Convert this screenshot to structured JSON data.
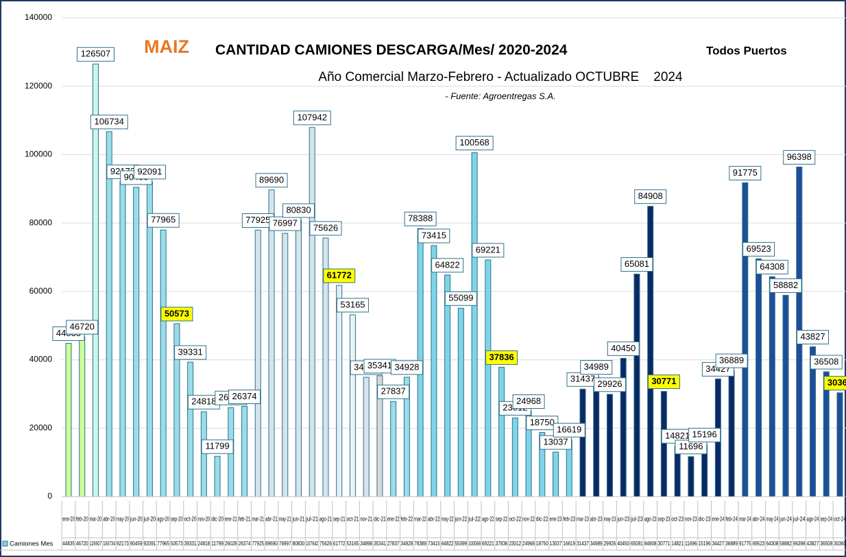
{
  "chart_data": {
    "type": "bar",
    "title_highlight": "MAIZ",
    "title": "CANTIDAD CAMIONES DESCARGA/Mes/ 2020-2024",
    "title_suffix": "Todos Puertos",
    "subtitle": "Año Comercial Marzo-Febrero - Actualizado OCTUBRE    2024",
    "source": "- Fuente: Agroentregas S.A.",
    "categories": [
      "ene-20",
      "feb-20",
      "mar-20",
      "abr-20",
      "may-20",
      "jun-20",
      "jul-20",
      "ago-20",
      "sep-20",
      "oct-20",
      "nov-20",
      "dic-20",
      "ene-21",
      "feb-21",
      "mar-21",
      "abr-21",
      "may-21",
      "jun-21",
      "jul-21",
      "ago-21",
      "sep-21",
      "oct-21",
      "nov-21",
      "dic-21",
      "ene-22",
      "feb-22",
      "mar-22",
      "abr-22",
      "may-22",
      "jun-22",
      "jul-22",
      "ago-22",
      "sep-22",
      "oct-22",
      "nov-22",
      "dic-22",
      "ene-23",
      "feb-23",
      "mar-23",
      "abr-23",
      "may-23",
      "jun-23",
      "jul-23",
      "ago-23",
      "sep-23",
      "oct-23",
      "nov-23",
      "dic-23",
      "ene-24",
      "feb-24",
      "mar-24",
      "abr-24",
      "may-24",
      "jun-24",
      "jul-24",
      "ago-24",
      "sep-24",
      "oct-24"
    ],
    "series": [
      {
        "name": "Camiones Mes",
        "color": "#7fd4e8",
        "values": [
          44835,
          46720,
          126507,
          106734,
          92173,
          90459,
          92091,
          77965,
          50573,
          39331,
          24818,
          11799,
          26028,
          26374,
          77925,
          89690,
          76997,
          80830,
          107942,
          75626,
          61772,
          53165,
          34898,
          35341,
          27837,
          34928,
          78388,
          73415,
          64822,
          55099,
          100568,
          69221,
          37836,
          23012,
          24968,
          18750,
          13037,
          16619,
          31437,
          34989,
          29926,
          40450,
          65081,
          84908,
          30771,
          14821,
          11696,
          15196,
          34427,
          36889,
          91775,
          69523,
          64308,
          58882,
          96398,
          43827,
          36508,
          30360
        ],
        "colors": [
          "#ccff99",
          "#ccff99",
          "#ccf5ee",
          "#99dde8",
          "#99dde8",
          "#99dde8",
          "#99dde8",
          "#99dde8",
          "#99dde8",
          "#99dde8",
          "#99dde8",
          "#99dde8",
          "#99dde8",
          "#99dde8",
          "#d4e4ee",
          "#d4e4ee",
          "#d4e4ee",
          "#d4e4ee",
          "#d4e4ee",
          "#d4e4ee",
          "#e4eef4",
          "#e8f4f4",
          "#d4e4ee",
          "#d9d9d9",
          "#99dde8",
          "#99dde8",
          "#7fd4e8",
          "#7fd4e8",
          "#7fd4e8",
          "#7fd4e8",
          "#7fd4e8",
          "#7fd4e8",
          "#7fd4e8",
          "#7fd4e8",
          "#7fd4e8",
          "#7fd4e8",
          "#7fd4e8",
          "#7fd4e8",
          "#0a2a66",
          "#0a2a66",
          "#0a2a66",
          "#0a2a66",
          "#0a2a66",
          "#0a2a66",
          "#0a2a66",
          "#0a2a66",
          "#0a2a66",
          "#0a2a66",
          "#0a2a66",
          "#0a2a66",
          "#1f4e99",
          "#1f4e99",
          "#1f4e99",
          "#1f4e99",
          "#1f4e99",
          "#1f4e99",
          "#1f4e99",
          "#1f4e99"
        ],
        "label_colors": [
          "#fff",
          "#fff",
          "#fff",
          "#fff",
          "#fff",
          "#fff",
          "#fff",
          "#fff",
          "#ffff00",
          "#fff",
          "#fff",
          "#fff",
          "#fff",
          "#fff",
          "#fff",
          "#fff",
          "#fff",
          "#fff",
          "#fff",
          "#fff",
          "#ffff00",
          "#fff",
          "#fff",
          "#fff",
          "#fff",
          "#fff",
          "#fff",
          "#fff",
          "#fff",
          "#fff",
          "#fff",
          "#fff",
          "#ffff00",
          "#fff",
          "#fff",
          "#fff",
          "#fff",
          "#fff",
          "#fff",
          "#fff",
          "#fff",
          "#fff",
          "#fff",
          "#fff",
          "#ffff00",
          "#fff",
          "#fff",
          "#fff",
          "#fff",
          "#fff",
          "#fff",
          "#fff",
          "#fff",
          "#fff",
          "#fff",
          "#fff",
          "#fff",
          "#ffff00"
        ]
      }
    ],
    "ylim": [
      0,
      140000
    ],
    "yticks": [
      0,
      20000,
      40000,
      60000,
      80000,
      100000,
      120000,
      140000
    ],
    "grid": true
  }
}
